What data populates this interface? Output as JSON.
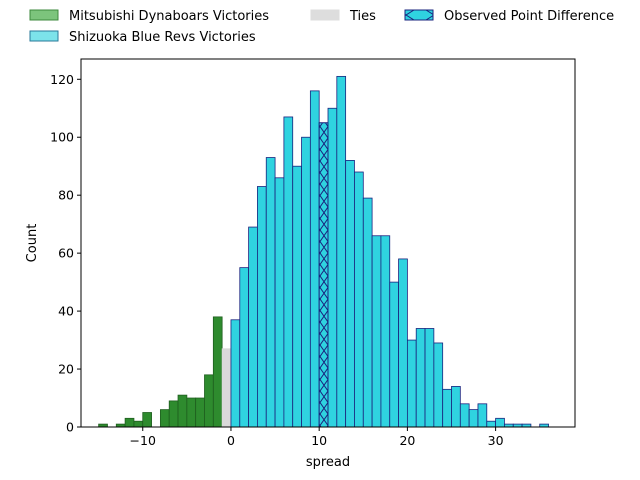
{
  "chart_data": {
    "type": "bar",
    "subtype": "histogram",
    "title": "",
    "xlabel": "spread",
    "ylabel": "Count",
    "xlim": [
      -17,
      39
    ],
    "ylim": [
      0,
      127
    ],
    "xticks": [
      -10,
      0,
      10,
      20,
      30
    ],
    "yticks": [
      0,
      20,
      40,
      60,
      80,
      100,
      120
    ],
    "grid": false,
    "legend_position": "top",
    "bin_width": 1,
    "series": [
      {
        "name": "Mitsubishi Dynaboars Victories",
        "color": "#2e8b2e",
        "edge_color": "#1f5e1f",
        "bins": [
          [
            -15,
            1
          ],
          [
            -13,
            1
          ],
          [
            -12,
            3
          ],
          [
            -11,
            2
          ],
          [
            -10,
            5
          ],
          [
            -8,
            6
          ],
          [
            -7,
            9
          ],
          [
            -6,
            11
          ],
          [
            -5,
            10
          ],
          [
            -4,
            10
          ],
          [
            -3,
            18
          ],
          [
            -2,
            38
          ]
        ]
      },
      {
        "name": "Ties",
        "color": "#d9d9d9",
        "edge_color": "#d9d9d9",
        "bins": [
          [
            -1,
            27
          ]
        ]
      },
      {
        "name": "Shizuoka Blue Revs Victories",
        "color": "#2fd3e0",
        "edge_color": "#1a237e",
        "bins": [
          [
            0,
            37
          ],
          [
            1,
            55
          ],
          [
            2,
            69
          ],
          [
            3,
            83
          ],
          [
            4,
            93
          ],
          [
            5,
            86
          ],
          [
            6,
            107
          ],
          [
            7,
            90
          ],
          [
            8,
            100
          ],
          [
            9,
            116
          ],
          [
            10,
            105
          ],
          [
            11,
            110
          ],
          [
            12,
            121
          ],
          [
            13,
            92
          ],
          [
            14,
            88
          ],
          [
            15,
            79
          ],
          [
            16,
            66
          ],
          [
            17,
            66
          ],
          [
            18,
            50
          ],
          [
            19,
            58
          ],
          [
            20,
            30
          ],
          [
            21,
            34
          ],
          [
            22,
            34
          ],
          [
            23,
            29
          ],
          [
            24,
            13
          ],
          [
            25,
            14
          ],
          [
            26,
            8
          ],
          [
            27,
            6
          ],
          [
            28,
            8
          ],
          [
            29,
            2
          ],
          [
            30,
            3
          ],
          [
            31,
            1
          ],
          [
            32,
            1
          ],
          [
            33,
            1
          ],
          [
            35,
            1
          ]
        ]
      }
    ],
    "observed_point_difference": {
      "name": "Observed Point Difference",
      "x": 10,
      "color": "#2fd3e0",
      "edge_color": "#1a237e"
    },
    "legend": [
      {
        "label": "Mitsubishi Dynaboars Victories",
        "color": "#7cc47c",
        "edge": "#3d8a3d",
        "hatch": false
      },
      {
        "label": "Shizuoka Blue Revs Victories",
        "color": "#7ce3ea",
        "edge": "#2a7a9a",
        "hatch": false
      },
      {
        "label": "Ties",
        "color": "#dddddd",
        "edge": "#dddddd",
        "hatch": false
      },
      {
        "label": "Observed Point Difference",
        "color": "#2fd3e0",
        "edge": "#1a237e",
        "hatch": true
      }
    ]
  }
}
